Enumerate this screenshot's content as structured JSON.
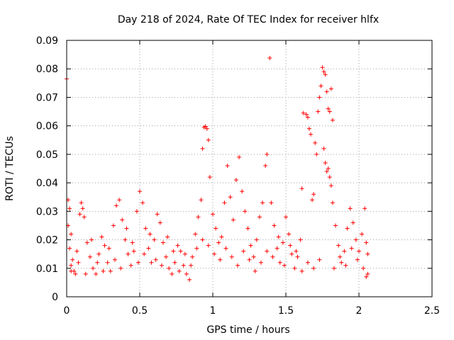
{
  "chart_data": {
    "type": "scatter",
    "title": "Day 218 of 2024, Rate Of TEC Index for receiver hlfx",
    "xlabel": "GPS time / hours",
    "ylabel": "ROTI / TECUs",
    "xlim": [
      0,
      2.5
    ],
    "ylim": [
      0,
      0.09
    ],
    "x_ticks": [
      0,
      0.5,
      1,
      1.5,
      2,
      2.5
    ],
    "x_tick_labels": [
      "0",
      "0.5",
      "1",
      "1.5",
      "2",
      "2.5"
    ],
    "y_ticks": [
      0,
      0.01,
      0.02,
      0.03,
      0.04,
      0.05,
      0.06,
      0.07,
      0.08,
      0.09
    ],
    "y_tick_labels": [
      "0",
      "0.01",
      "0.02",
      "0.03",
      "0.04",
      "0.05",
      "0.06",
      "0.07",
      "0.08",
      "0.09"
    ],
    "grid": true,
    "marker": "+",
    "series_color": "#ff0000",
    "series": [
      {
        "name": "ROTI",
        "points": [
          [
            0.0,
            0.0765
          ],
          [
            0.01,
            0.034
          ],
          [
            0.02,
            0.031
          ],
          [
            0.01,
            0.025
          ],
          [
            0.03,
            0.022
          ],
          [
            0.02,
            0.017
          ],
          [
            0.04,
            0.013
          ],
          [
            0.03,
            0.011
          ],
          [
            0.05,
            0.009
          ],
          [
            0.06,
            0.008
          ],
          [
            0.08,
            0.012
          ],
          [
            0.09,
            0.029
          ],
          [
            0.1,
            0.033
          ],
          [
            0.11,
            0.031
          ],
          [
            0.12,
            0.028
          ],
          [
            0.14,
            0.019
          ],
          [
            0.16,
            0.014
          ],
          [
            0.18,
            0.01
          ],
          [
            0.2,
            0.008
          ],
          [
            0.22,
            0.015
          ],
          [
            0.24,
            0.021
          ],
          [
            0.26,
            0.018
          ],
          [
            0.28,
            0.012
          ],
          [
            0.3,
            0.009
          ],
          [
            0.32,
            0.025
          ],
          [
            0.34,
            0.032
          ],
          [
            0.36,
            0.034
          ],
          [
            0.38,
            0.027
          ],
          [
            0.4,
            0.02
          ],
          [
            0.42,
            0.015
          ],
          [
            0.44,
            0.011
          ],
          [
            0.46,
            0.016
          ],
          [
            0.48,
            0.03
          ],
          [
            0.5,
            0.037
          ],
          [
            0.52,
            0.033
          ],
          [
            0.54,
            0.024
          ],
          [
            0.56,
            0.017
          ],
          [
            0.58,
            0.012
          ],
          [
            0.6,
            0.02
          ],
          [
            0.62,
            0.029
          ],
          [
            0.64,
            0.026
          ],
          [
            0.66,
            0.019
          ],
          [
            0.68,
            0.014
          ],
          [
            0.7,
            0.01
          ],
          [
            0.72,
            0.008
          ],
          [
            0.74,
            0.012
          ],
          [
            0.76,
            0.018
          ],
          [
            0.78,
            0.016
          ],
          [
            0.8,
            0.011
          ],
          [
            0.82,
            0.008
          ],
          [
            0.84,
            0.006
          ],
          [
            0.86,
            0.014
          ],
          [
            0.88,
            0.022
          ],
          [
            0.9,
            0.028
          ],
          [
            0.92,
            0.034
          ],
          [
            0.93,
            0.052
          ],
          [
            0.94,
            0.0595
          ],
          [
            0.95,
            0.0598
          ],
          [
            0.96,
            0.059
          ],
          [
            0.97,
            0.055
          ],
          [
            0.98,
            0.042
          ],
          [
            1.0,
            0.029
          ],
          [
            1.02,
            0.024
          ],
          [
            1.04,
            0.019
          ],
          [
            1.06,
            0.021
          ],
          [
            1.08,
            0.033
          ],
          [
            1.1,
            0.046
          ],
          [
            1.12,
            0.035
          ],
          [
            1.14,
            0.027
          ],
          [
            1.16,
            0.041
          ],
          [
            1.18,
            0.049
          ],
          [
            1.2,
            0.037
          ],
          [
            1.22,
            0.03
          ],
          [
            1.24,
            0.024
          ],
          [
            1.26,
            0.018
          ],
          [
            1.28,
            0.014
          ],
          [
            1.3,
            0.02
          ],
          [
            1.32,
            0.028
          ],
          [
            1.34,
            0.033
          ],
          [
            1.36,
            0.046
          ],
          [
            1.37,
            0.05
          ],
          [
            1.39,
            0.0838
          ],
          [
            1.4,
            0.033
          ],
          [
            1.42,
            0.025
          ],
          [
            1.44,
            0.017
          ],
          [
            1.46,
            0.012
          ],
          [
            1.48,
            0.019
          ],
          [
            1.5,
            0.028
          ],
          [
            1.52,
            0.022
          ],
          [
            1.54,
            0.015
          ],
          [
            1.56,
            0.01
          ],
          [
            1.58,
            0.014
          ],
          [
            1.6,
            0.02
          ],
          [
            1.61,
            0.038
          ],
          [
            1.62,
            0.0645
          ],
          [
            1.64,
            0.064
          ],
          [
            1.65,
            0.063
          ],
          [
            1.66,
            0.059
          ],
          [
            1.67,
            0.057
          ],
          [
            1.68,
            0.034
          ],
          [
            1.69,
            0.036
          ],
          [
            1.7,
            0.054
          ],
          [
            1.71,
            0.05
          ],
          [
            1.72,
            0.065
          ],
          [
            1.73,
            0.07
          ],
          [
            1.74,
            0.074
          ],
          [
            1.75,
            0.0805
          ],
          [
            1.76,
            0.079
          ],
          [
            1.77,
            0.078
          ],
          [
            1.78,
            0.072
          ],
          [
            1.79,
            0.066
          ],
          [
            1.8,
            0.065
          ],
          [
            1.81,
            0.073
          ],
          [
            1.82,
            0.062
          ],
          [
            1.76,
            0.052
          ],
          [
            1.77,
            0.047
          ],
          [
            1.78,
            0.044
          ],
          [
            1.79,
            0.045
          ],
          [
            1.8,
            0.042
          ],
          [
            1.81,
            0.039
          ],
          [
            1.82,
            0.033
          ],
          [
            1.84,
            0.025
          ],
          [
            1.86,
            0.018
          ],
          [
            1.88,
            0.012
          ],
          [
            1.9,
            0.016
          ],
          [
            1.92,
            0.024
          ],
          [
            1.94,
            0.031
          ],
          [
            1.96,
            0.026
          ],
          [
            1.98,
            0.02
          ],
          [
            2.0,
            0.016
          ],
          [
            2.02,
            0.022
          ],
          [
            2.04,
            0.031
          ],
          [
            2.05,
            0.019
          ],
          [
            2.06,
            0.008
          ],
          [
            2.05,
            0.007
          ],
          [
            0.03,
            0.009
          ],
          [
            0.07,
            0.016
          ],
          [
            0.13,
            0.008
          ],
          [
            0.17,
            0.02
          ],
          [
            0.21,
            0.012
          ],
          [
            0.25,
            0.009
          ],
          [
            0.29,
            0.017
          ],
          [
            0.33,
            0.013
          ],
          [
            0.37,
            0.01
          ],
          [
            0.41,
            0.024
          ],
          [
            0.45,
            0.019
          ],
          [
            0.49,
            0.012
          ],
          [
            0.53,
            0.015
          ],
          [
            0.57,
            0.022
          ],
          [
            0.61,
            0.013
          ],
          [
            0.65,
            0.011
          ],
          [
            0.69,
            0.021
          ],
          [
            0.73,
            0.016
          ],
          [
            0.77,
            0.009
          ],
          [
            0.81,
            0.015
          ],
          [
            0.85,
            0.011
          ],
          [
            0.89,
            0.017
          ],
          [
            0.93,
            0.02
          ],
          [
            0.97,
            0.018
          ],
          [
            1.01,
            0.015
          ],
          [
            1.05,
            0.013
          ],
          [
            1.09,
            0.017
          ],
          [
            1.13,
            0.014
          ],
          [
            1.17,
            0.011
          ],
          [
            1.21,
            0.016
          ],
          [
            1.25,
            0.013
          ],
          [
            1.29,
            0.009
          ],
          [
            1.33,
            0.012
          ],
          [
            1.37,
            0.016
          ],
          [
            1.41,
            0.014
          ],
          [
            1.45,
            0.021
          ],
          [
            1.49,
            0.011
          ],
          [
            1.53,
            0.018
          ],
          [
            1.57,
            0.016
          ],
          [
            1.61,
            0.009
          ],
          [
            1.65,
            0.012
          ],
          [
            1.69,
            0.01
          ],
          [
            1.73,
            0.013
          ],
          [
            1.83,
            0.01
          ],
          [
            1.87,
            0.014
          ],
          [
            1.91,
            0.011
          ],
          [
            1.95,
            0.017
          ],
          [
            1.99,
            0.013
          ],
          [
            2.03,
            0.01
          ],
          [
            2.06,
            0.015
          ]
        ]
      }
    ]
  }
}
